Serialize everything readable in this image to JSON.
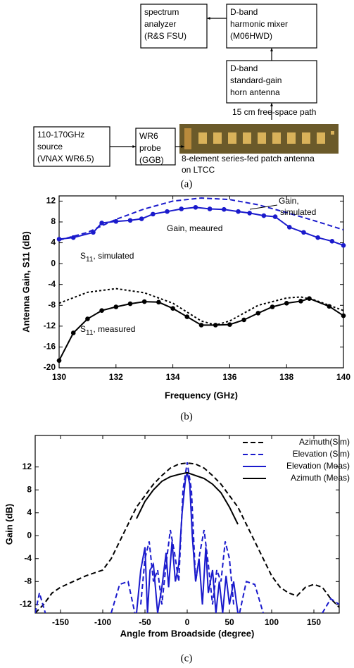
{
  "diagram_a": {
    "boxes": [
      {
        "lines": [
          "spectrum",
          "analyzer",
          "(R&S FSU)"
        ]
      },
      {
        "lines": [
          "D-band",
          "harmonic mixer",
          "(M06HWD)"
        ]
      },
      {
        "lines": [
          "D-band",
          "standard-gain",
          "horn antenna"
        ]
      },
      {
        "lines": [
          "110-170GHz",
          "source",
          "(VNAX WR6.5)"
        ]
      },
      {
        "lines": [
          "WR6",
          "probe",
          "(GGB)"
        ]
      }
    ],
    "labels": [
      "15 cm free-space path",
      "8-element series-fed patch antenna",
      "on LTCC"
    ]
  },
  "captions": [
    "(a)",
    "(b)",
    "(c)"
  ],
  "chart_data": [
    {
      "type": "line",
      "x_label": "Frequency (GHz)",
      "y_label": "Antenna Gain, S11 (dB)",
      "xlim": [
        130,
        140
      ],
      "ylim": [
        -20,
        13
      ],
      "xticks": [
        130,
        132,
        134,
        136,
        138,
        140
      ],
      "yticks": [
        -20,
        -16,
        -12,
        -8,
        -4,
        0,
        4,
        8,
        12
      ],
      "series": [
        {
          "color": "#1a1acc",
          "dash": "solid",
          "markers": true,
          "x": [
            130,
            130.5,
            131.2,
            131.5,
            132,
            132.5,
            132.9,
            133.3,
            133.8,
            134.3,
            134.8,
            135.3,
            135.8,
            136.3,
            136.7,
            137.2,
            137.6,
            138.1,
            138.6,
            139.1,
            139.6,
            140
          ],
          "values": [
            4.7,
            5,
            6,
            7.8,
            8.1,
            8.3,
            8.6,
            9.5,
            10,
            10.5,
            10.8,
            10.5,
            10.4,
            10,
            9.7,
            9.2,
            9,
            7,
            6,
            5,
            4.3,
            3.5
          ]
        },
        {
          "color": "#1a1acc",
          "dash": "dashed",
          "markers": false,
          "x": [
            130,
            131,
            132,
            133,
            134,
            135,
            136,
            137,
            138,
            139,
            140
          ],
          "values": [
            4.5,
            6,
            8.5,
            10.5,
            12,
            12.6,
            12.3,
            11.3,
            9.8,
            8.2,
            6.5
          ]
        },
        {
          "color": "#000000",
          "dash": "dotted",
          "markers": false,
          "x": [
            130,
            131,
            132,
            133,
            134,
            135,
            135.5,
            136,
            137,
            138,
            138.5,
            139,
            140
          ],
          "values": [
            -7.6,
            -5.5,
            -4.8,
            -5.6,
            -7.6,
            -11,
            -11.8,
            -11,
            -8,
            -6.6,
            -6.4,
            -7,
            -9
          ]
        },
        {
          "color": "#000000",
          "dash": "solid",
          "markers": true,
          "x": [
            130,
            130.5,
            131,
            131.5,
            132,
            132.5,
            133,
            133.5,
            134,
            134.5,
            135,
            135.5,
            136,
            136.5,
            137,
            137.5,
            138,
            138.5,
            138.8,
            139.5,
            140
          ],
          "values": [
            -18.6,
            -13.3,
            -10.6,
            -9,
            -8.3,
            -7.7,
            -7.3,
            -7.4,
            -8.6,
            -10.2,
            -11.8,
            -11.8,
            -11.7,
            -10.8,
            -9.5,
            -8.3,
            -7.6,
            -7.2,
            -6.7,
            -8.2,
            -10
          ]
        }
      ],
      "annotations": [
        {
          "lines": [
            "Gain,",
            "simulated"
          ]
        },
        {
          "lines": [
            "Gain, meaured"
          ]
        },
        {
          "lines": [
            "S"
          ],
          "sub": "11",
          "rest": ", simulated"
        },
        {
          "lines": [
            "S"
          ],
          "sub": "11",
          "rest": ", measured"
        }
      ]
    },
    {
      "type": "line",
      "x_label": "Angle from Broadside (degree)",
      "y_label": "Gain (dB)",
      "xlim": [
        -180,
        180
      ],
      "ylim": [
        -13.5,
        17.5
      ],
      "xticks": [
        -150,
        -100,
        -50,
        0,
        50,
        100,
        150
      ],
      "yticks": [
        -12,
        -8,
        -4,
        0,
        4,
        8,
        12
      ],
      "legend": "upper right",
      "series": [
        {
          "name": "Azimuth(Sim)",
          "color": "#000000",
          "dash": "dashed",
          "x": [
            -180,
            -170,
            -160,
            -150,
            -120,
            -100,
            -90,
            -80,
            -70,
            -60,
            -50,
            -40,
            -30,
            -20,
            -10,
            0,
            10,
            20,
            30,
            40,
            50,
            60,
            70,
            80,
            90,
            100,
            110,
            120,
            130,
            140,
            150,
            160,
            170,
            180
          ],
          "values": [
            -13.5,
            -12,
            -10,
            -9,
            -7,
            -6,
            -4,
            -1,
            2,
            5,
            7,
            9,
            10.5,
            11.8,
            12.5,
            12.7,
            12.5,
            11.8,
            10.5,
            9,
            7,
            5,
            2,
            -1,
            -4,
            -7,
            -9,
            -10,
            -10.5,
            -9,
            -8.5,
            -9,
            -11,
            -12.5
          ]
        },
        {
          "name": "Elevation (Sim)",
          "color": "#1a1acc",
          "dash": "dashed",
          "x": [
            -180,
            -175,
            -168,
            -160,
            -90,
            -80,
            -70,
            -62,
            -58,
            -55,
            -50,
            -45,
            -40,
            -35,
            -30,
            -25,
            -20,
            -15,
            -10,
            -5,
            0,
            5,
            10,
            15,
            20,
            25,
            30,
            35,
            40,
            45,
            50,
            55,
            58,
            62,
            70,
            80,
            90,
            100,
            160,
            170,
            180
          ],
          "values": [
            -13.5,
            -10,
            -13.5,
            null,
            -13.5,
            -8.5,
            -8,
            -13.5,
            null,
            -12,
            -4,
            -1,
            -8,
            -6,
            -12,
            -5,
            1,
            -3,
            -8,
            8,
            12.8,
            8,
            -8,
            -3,
            1,
            -5,
            -12,
            -6,
            -8,
            -1,
            -4,
            -12,
            null,
            -13.5,
            -8,
            -8.5,
            -13.5,
            null,
            -13.5,
            -11,
            -12
          ]
        },
        {
          "name": "Elevation (Meas)",
          "color": "#1a1acc",
          "dash": "solid",
          "x": [
            -60,
            -55,
            -50,
            -47,
            -44,
            -40,
            -35,
            -30,
            -25,
            -22,
            -18,
            -14,
            -10,
            -6,
            -2,
            0,
            3,
            6,
            10,
            14,
            18,
            22,
            25,
            30,
            34,
            38,
            42,
            46,
            50,
            55,
            60
          ],
          "values": [
            -13.5,
            -6,
            -2,
            -13.5,
            -6,
            -5,
            -13.5,
            -9,
            -3,
            -9,
            -1,
            -8,
            -5,
            4,
            10,
            11,
            9,
            0,
            -8,
            -4,
            -12,
            -2,
            -10,
            -6,
            -13.5,
            -8,
            -13.5,
            -7,
            -12,
            -8,
            -13.5
          ]
        },
        {
          "name": "Azimuth (Meas)",
          "color": "#000000",
          "dash": "solid",
          "x": [
            -60,
            -50,
            -40,
            -30,
            -20,
            -10,
            0,
            10,
            20,
            30,
            40,
            50,
            60
          ],
          "values": [
            3,
            6,
            8,
            9.5,
            10.3,
            10.7,
            11,
            10.5,
            10,
            9,
            7.5,
            5,
            2
          ]
        }
      ]
    }
  ]
}
